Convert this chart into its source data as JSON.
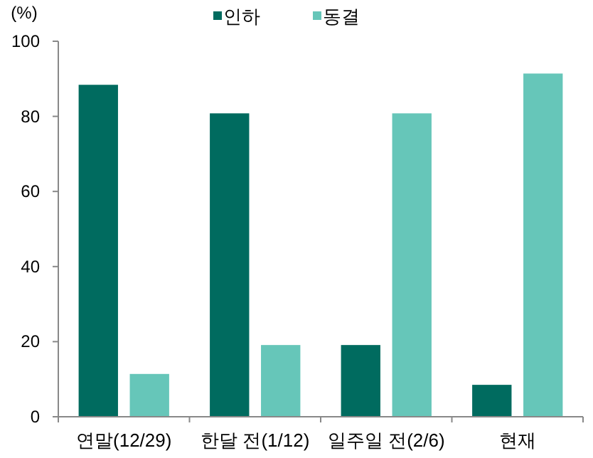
{
  "chart_data": {
    "type": "bar",
    "ylabel": "(%)",
    "categories": [
      "연말(12/29)",
      "한달 전(1/12)",
      "일주일 전(2/6)",
      "현재"
    ],
    "series": [
      {
        "name": "인하",
        "color": "#006b5f",
        "values": [
          88.4,
          80.8,
          19.1,
          8.5
        ]
      },
      {
        "name": "동결",
        "color": "#66c6b9",
        "values": [
          11.4,
          19.1,
          80.8,
          91.4
        ]
      }
    ],
    "ylim": [
      0,
      100
    ],
    "yticks": [
      0,
      20,
      40,
      60,
      80,
      100
    ],
    "grid": false,
    "legend": "top"
  }
}
